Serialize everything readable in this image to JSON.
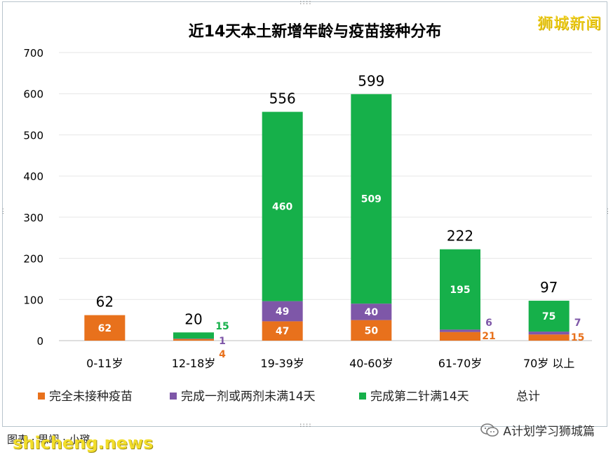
{
  "watermark": "狮城新闻",
  "caption": "图表 · 思翊 · 小璐",
  "site_watermark": "shicheng.news",
  "wechat_label": "A计划学习狮城篇",
  "icons": {
    "wechat": "wechat-icon"
  },
  "colors": {
    "unvaccinated": "#e8711c",
    "partial": "#7e57a8",
    "full": "#16b04a",
    "axis_text": "#000000"
  },
  "chart_data": {
    "type": "bar",
    "stacked": true,
    "title": "近14天本土新增年龄与疫苗接种分布",
    "xlabel": "",
    "ylabel": "",
    "ylim": [
      0,
      700
    ],
    "yticks": [
      0,
      100,
      200,
      300,
      400,
      500,
      600,
      700
    ],
    "grid": true,
    "legend_position": "bottom",
    "categories": [
      "0-11岁",
      "12-18岁",
      "19-39岁",
      "40-60岁",
      "61-70岁",
      "70岁 以上"
    ],
    "series": [
      {
        "name": "完全未接种疫苗",
        "values": [
          62,
          4,
          47,
          50,
          21,
          15
        ]
      },
      {
        "name": "完成一剂或两剂未满14天",
        "values": [
          0,
          1,
          49,
          40,
          6,
          7
        ]
      },
      {
        "name": "完成第二针满14天",
        "values": [
          0,
          15,
          460,
          509,
          195,
          75
        ]
      }
    ],
    "totals_label": "总计",
    "totals": [
      62,
      20,
      556,
      599,
      222,
      97
    ]
  }
}
